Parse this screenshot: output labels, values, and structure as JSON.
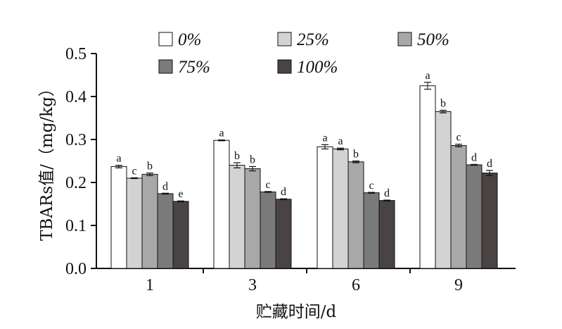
{
  "chart_data": {
    "type": "bar",
    "xlabel": "贮藏时间/d",
    "ylabel": "TBARs值/（mg/kg）",
    "categories": [
      "1",
      "3",
      "6",
      "9"
    ],
    "ylim": [
      0,
      0.5
    ],
    "yticks": [
      "0.0",
      "0.1",
      "0.2",
      "0.3",
      "0.4",
      "0.5"
    ],
    "legend_position": "top",
    "series": [
      {
        "name": "0%",
        "color": "#ffffff",
        "values": [
          0.237,
          0.298,
          0.283,
          0.425
        ],
        "errors": [
          0.003,
          0.001,
          0.005,
          0.008
        ],
        "labels": [
          "a",
          "a",
          "a",
          "a"
        ]
      },
      {
        "name": "25%",
        "color": "#d3d3d3",
        "values": [
          0.21,
          0.24,
          0.278,
          0.365
        ],
        "errors": [
          0.001,
          0.006,
          0.002,
          0.003
        ],
        "labels": [
          "c",
          "b",
          "a",
          "b"
        ]
      },
      {
        "name": "50%",
        "color": "#a8a8a8",
        "values": [
          0.219,
          0.232,
          0.248,
          0.286
        ],
        "errors": [
          0.003,
          0.005,
          0.002,
          0.003
        ],
        "labels": [
          "b",
          "b",
          "b",
          "c"
        ]
      },
      {
        "name": "75%",
        "color": "#7a7a7a",
        "values": [
          0.174,
          0.178,
          0.176,
          0.241
        ],
        "errors": [
          0.001,
          0.001,
          0.001,
          0.001
        ],
        "labels": [
          "d",
          "c",
          "c",
          "d"
        ]
      },
      {
        "name": "100%",
        "color": "#4a4344",
        "values": [
          0.156,
          0.161,
          0.158,
          0.222
        ],
        "errors": [
          0.001,
          0.001,
          0.001,
          0.006
        ],
        "labels": [
          "e",
          "d",
          "d",
          "d"
        ]
      }
    ]
  }
}
